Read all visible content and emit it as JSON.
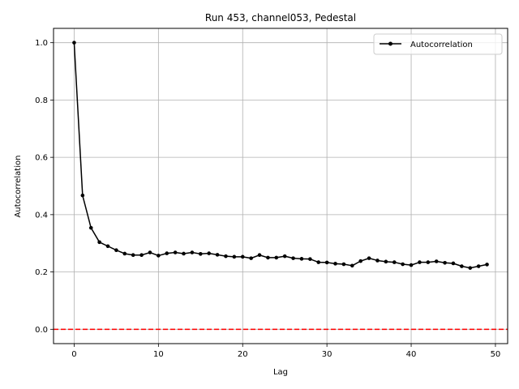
{
  "chart_data": {
    "type": "line",
    "title": "Run 453, channel053, Pedestal",
    "xlabel": "Lag",
    "ylabel": "Autocorrelation",
    "xlim": [
      -2.45,
      51.45
    ],
    "ylim": [
      -0.05,
      1.05
    ],
    "xticks": [
      0,
      10,
      20,
      30,
      40,
      50
    ],
    "yticks": [
      0.0,
      0.2,
      0.4,
      0.6,
      0.8,
      1.0
    ],
    "xtick_labels": [
      "0",
      "10",
      "20",
      "30",
      "40",
      "50"
    ],
    "ytick_labels": [
      "0.0",
      "0.2",
      "0.4",
      "0.6",
      "0.8",
      "1.0"
    ],
    "grid": true,
    "legend_position": "top-right",
    "series": [
      {
        "name": "Autocorrelation",
        "color": "#000000",
        "marker": "circle",
        "x": [
          0,
          1,
          2,
          3,
          4,
          5,
          6,
          7,
          8,
          9,
          10,
          11,
          12,
          13,
          14,
          15,
          16,
          17,
          18,
          19,
          20,
          21,
          22,
          23,
          24,
          25,
          26,
          27,
          28,
          29,
          30,
          31,
          32,
          33,
          34,
          35,
          36,
          37,
          38,
          39,
          40,
          41,
          42,
          43,
          44,
          45,
          46,
          47,
          48,
          49
        ],
        "y": [
          1.0,
          0.467,
          0.354,
          0.304,
          0.29,
          0.276,
          0.264,
          0.259,
          0.259,
          0.268,
          0.257,
          0.265,
          0.268,
          0.264,
          0.268,
          0.263,
          0.265,
          0.26,
          0.255,
          0.253,
          0.253,
          0.248,
          0.259,
          0.25,
          0.25,
          0.255,
          0.248,
          0.246,
          0.245,
          0.234,
          0.233,
          0.229,
          0.227,
          0.222,
          0.238,
          0.248,
          0.24,
          0.236,
          0.234,
          0.227,
          0.224,
          0.234,
          0.234,
          0.237,
          0.232,
          0.23,
          0.22,
          0.214,
          0.22,
          0.226
        ]
      }
    ],
    "reference_line": {
      "y": 0.0,
      "color": "#ff0000",
      "style": "dashed"
    }
  }
}
